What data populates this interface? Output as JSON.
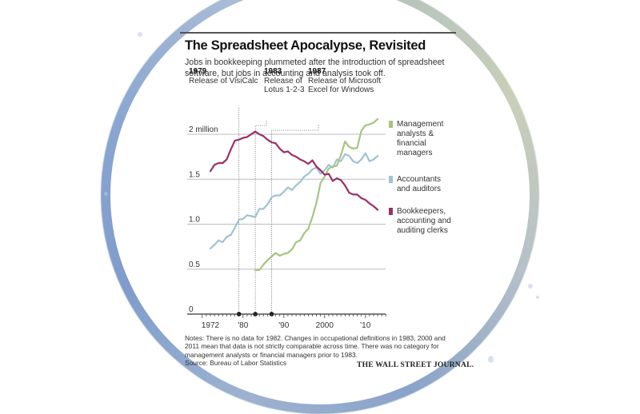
{
  "chart_data": {
    "type": "line",
    "title": "The Spreadsheet Apocalypse, Revisited",
    "subtitle": "Jobs in bookkeeping plummeted after the introduction of spreadsheet software, but jobs in accounting and analysis took off.",
    "xlabel": "",
    "ylabel": "",
    "xlim": [
      1970,
      2015
    ],
    "ylim": [
      0,
      2.2
    ],
    "grid": true,
    "legend_position": "right",
    "y_ticks": [
      {
        "value": 2.0,
        "label": "2 million"
      },
      {
        "value": 1.5,
        "label": "1.5"
      },
      {
        "value": 1.0,
        "label": "1.0"
      },
      {
        "value": 0.5,
        "label": "0.5"
      },
      {
        "value": 0,
        "label": "0"
      }
    ],
    "x_ticks": [
      {
        "value": 1972,
        "label": "1972"
      },
      {
        "value": 1980,
        "label": "'80"
      },
      {
        "value": 1990,
        "label": "'90"
      },
      {
        "value": 2000,
        "label": "2000"
      },
      {
        "value": 2010,
        "label": "'10"
      }
    ],
    "annotations": [
      {
        "year": 1979,
        "year_label": "1979",
        "text": [
          "Release of VisiCalc"
        ]
      },
      {
        "year": 1983,
        "year_label": "1983",
        "text": [
          "Release of",
          "Lotus 1-2-3"
        ]
      },
      {
        "year": 1987,
        "year_label": "1987",
        "text": [
          "Release of Microsoft",
          "Excel for Windows"
        ]
      }
    ],
    "series": [
      {
        "name": "Management analysts & financial managers",
        "legend_lines": [
          "Management",
          "analysts &",
          "financial",
          "managers"
        ],
        "color": "#a6c482",
        "x": [
          1983,
          1984,
          1985,
          1986,
          1987,
          1988,
          1989,
          1990,
          1991,
          1992,
          1993,
          1994,
          1995,
          1996,
          1997,
          1998,
          1999,
          2000,
          2001,
          2002,
          2003,
          2004,
          2005,
          2006,
          2007,
          2008,
          2009,
          2010,
          2011,
          2012,
          2013
        ],
        "values": [
          0.49,
          0.49,
          0.55,
          0.6,
          0.64,
          0.68,
          0.65,
          0.67,
          0.68,
          0.72,
          0.8,
          0.82,
          0.9,
          0.95,
          1.08,
          1.24,
          1.46,
          1.53,
          1.62,
          1.64,
          1.65,
          1.77,
          1.92,
          1.86,
          1.84,
          1.85,
          2.04,
          2.1,
          2.11,
          2.13,
          2.17
        ]
      },
      {
        "name": "Accountants and auditors",
        "legend_lines": [
          "Accountants",
          "and auditors"
        ],
        "color": "#9fc3d3",
        "x": [
          1972,
          1973,
          1974,
          1975,
          1976,
          1977,
          1978,
          1979,
          1980,
          1981,
          1983,
          1984,
          1985,
          1986,
          1987,
          1988,
          1989,
          1990,
          1991,
          1992,
          1993,
          1994,
          1995,
          1996,
          1997,
          1998,
          1999,
          2000,
          2001,
          2002,
          2003,
          2004,
          2005,
          2006,
          2007,
          2008,
          2009,
          2010,
          2011,
          2012,
          2013
        ],
        "values": [
          0.73,
          0.77,
          0.82,
          0.8,
          0.86,
          0.88,
          0.96,
          1.05,
          1.06,
          1.1,
          1.08,
          1.17,
          1.17,
          1.22,
          1.3,
          1.32,
          1.32,
          1.36,
          1.41,
          1.38,
          1.43,
          1.47,
          1.53,
          1.56,
          1.61,
          1.63,
          1.56,
          1.6,
          1.66,
          1.63,
          1.72,
          1.7,
          1.78,
          1.76,
          1.7,
          1.68,
          1.72,
          1.79,
          1.7,
          1.72,
          1.76
        ]
      },
      {
        "name": "Bookkeepers, accounting and auditing clerks",
        "legend_lines": [
          "Bookkeepers,",
          "accounting and",
          "auditing clerks"
        ],
        "color": "#9c2f66",
        "x": [
          1972,
          1973,
          1974,
          1975,
          1976,
          1977,
          1978,
          1979,
          1980,
          1981,
          1983,
          1984,
          1985,
          1986,
          1987,
          1988,
          1989,
          1990,
          1991,
          1992,
          1993,
          1994,
          1995,
          1996,
          1997,
          1998,
          1999,
          2000,
          2001,
          2002,
          2003,
          2004,
          2005,
          2006,
          2007,
          2008,
          2009,
          2010,
          2011,
          2012,
          2013
        ],
        "values": [
          1.59,
          1.66,
          1.68,
          1.68,
          1.72,
          1.83,
          1.93,
          1.94,
          1.96,
          1.97,
          2.03,
          2.0,
          1.98,
          1.94,
          1.91,
          1.9,
          1.84,
          1.8,
          1.81,
          1.77,
          1.75,
          1.72,
          1.7,
          1.67,
          1.71,
          1.64,
          1.6,
          1.55,
          1.56,
          1.48,
          1.51,
          1.49,
          1.43,
          1.35,
          1.33,
          1.33,
          1.29,
          1.27,
          1.23,
          1.2,
          1.16
        ]
      }
    ],
    "notes": "Notes: There is no data for 1982. Changes in occupational definitions in 1983, 2000 and 2011 mean that data is not strictly comparable across time. There was no category for management analysts or financial managers prior to 1983.",
    "source": "Source: Bureau of Labor Statistics",
    "publisher": "THE WALL STREET JOURNAL."
  }
}
